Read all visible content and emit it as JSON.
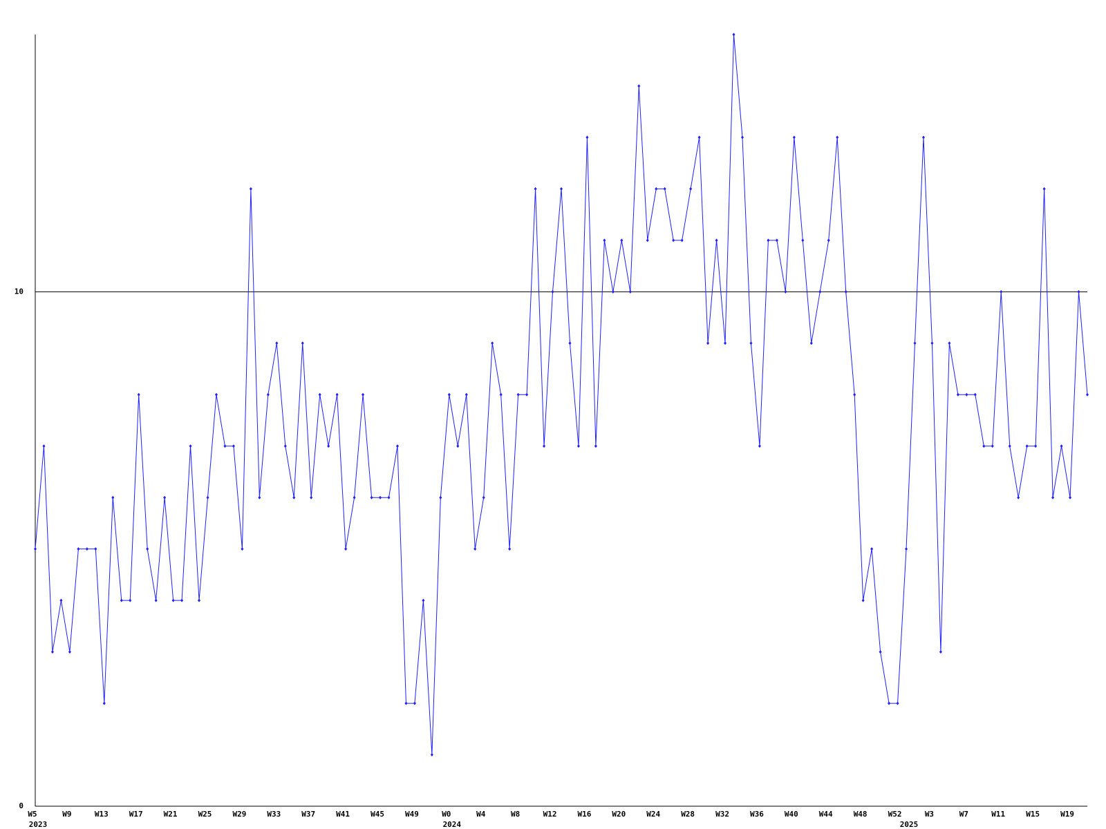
{
  "chart_data": {
    "type": "line",
    "categories": [
      "W5",
      null,
      null,
      null,
      "W9",
      null,
      null,
      null,
      "W13",
      null,
      null,
      null,
      "W17",
      null,
      null,
      null,
      "W21",
      null,
      null,
      null,
      "W25",
      null,
      null,
      null,
      "W29",
      null,
      null,
      null,
      "W33",
      null,
      null,
      null,
      "W37",
      null,
      null,
      null,
      "W41",
      null,
      null,
      null,
      "W45",
      null,
      null,
      null,
      "W49",
      null,
      null,
      null,
      "W0",
      null,
      null,
      null,
      "W4",
      null,
      null,
      null,
      "W8",
      null,
      null,
      null,
      "W12",
      null,
      null,
      null,
      "W16",
      null,
      null,
      null,
      "W20",
      null,
      null,
      null,
      "W24",
      null,
      null,
      null,
      "W28",
      null,
      null,
      null,
      "W32",
      null,
      null,
      null,
      "W36",
      null,
      null,
      null,
      "W40",
      null,
      null,
      null,
      "W44",
      null,
      null,
      null,
      "W48",
      null,
      null,
      null,
      "W52",
      null,
      null,
      null,
      "W3",
      null,
      null,
      null,
      "W7",
      null,
      null,
      null,
      "W11",
      null,
      null,
      null,
      "W15",
      null,
      null,
      null,
      "W19",
      null,
      null
    ],
    "year_labels": [
      {
        "index": 0,
        "label": "2023"
      },
      {
        "index": 48,
        "label": "2024"
      },
      {
        "index": 101,
        "label": "2025"
      }
    ],
    "series": [
      {
        "color": "#1f1fff",
        "values": [
          5,
          7,
          3,
          4,
          3,
          5,
          5,
          5,
          2,
          6,
          4,
          4,
          8,
          5,
          4,
          6,
          4,
          4,
          7,
          4,
          6,
          8,
          7,
          7,
          5,
          12,
          6,
          8,
          9,
          7,
          6,
          9,
          6,
          8,
          7,
          8,
          5,
          6,
          8,
          6,
          6,
          6,
          7,
          2,
          2,
          4,
          1,
          6,
          8,
          7,
          8,
          5,
          6,
          9,
          8,
          5,
          8,
          8,
          12,
          7,
          10,
          12,
          9,
          7,
          13,
          7,
          11,
          10,
          11,
          10,
          14,
          11,
          12,
          12,
          11,
          11,
          12,
          13,
          9,
          11,
          9,
          15,
          13,
          9,
          7,
          11,
          11,
          10,
          13,
          11,
          9,
          10,
          11,
          13,
          10,
          8,
          4,
          5,
          3,
          2,
          2,
          5,
          9,
          13,
          9,
          3,
          9,
          8,
          8,
          8,
          7,
          7,
          10,
          7,
          6,
          7,
          7,
          12,
          6,
          7,
          6,
          10,
          8
        ]
      }
    ],
    "ylim": [
      0,
      15
    ],
    "yticks": [
      0,
      10
    ],
    "grid": true
  }
}
